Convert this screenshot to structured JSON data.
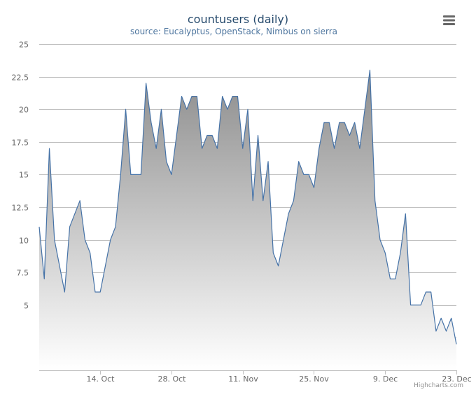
{
  "chart_data": {
    "type": "area",
    "title": "countusers (daily)",
    "subtitle": "source: Eucalyptus, OpenStack, Nimbus on sierra",
    "credits": "Highcharts.com",
    "xlabel": "",
    "ylabel": "",
    "x_start": "2012-10-02",
    "x_end": "2012-12-23",
    "ylim": [
      0,
      25
    ],
    "y_ticks": [
      0,
      2.5,
      5,
      7.5,
      10,
      12.5,
      15,
      17.5,
      20,
      22.5,
      25
    ],
    "y_tick_labels": [
      "",
      "",
      "5",
      "7.5",
      "10",
      "12.5",
      "15",
      "17.5",
      "20",
      "22.5",
      "25"
    ],
    "x_ticks": [
      "2012-10-14",
      "2012-10-28",
      "2012-11-11",
      "2012-11-25",
      "2012-12-09",
      "2012-12-23"
    ],
    "x_tick_labels": [
      "14. Oct",
      "28. Oct",
      "11. Nov",
      "25. Nov",
      "9. Dec",
      "23. Dec"
    ],
    "grid": true,
    "legend": "none",
    "colors": {
      "line": "#4572A7",
      "fill_top": "#8c8c8c",
      "fill_bottom": "#ffffff",
      "title": "#274b6d",
      "subtitle": "#4d759e",
      "axis_label": "#666666",
      "grid": "#c0c0c0"
    },
    "series": [
      {
        "x": [
          "2012-10-02",
          "2012-10-03",
          "2012-10-04",
          "2012-10-05",
          "2012-10-06",
          "2012-10-07",
          "2012-10-08",
          "2012-10-09",
          "2012-10-10",
          "2012-10-11",
          "2012-10-12",
          "2012-10-13",
          "2012-10-14",
          "2012-10-15",
          "2012-10-16",
          "2012-10-17",
          "2012-10-18",
          "2012-10-19",
          "2012-10-20",
          "2012-10-21",
          "2012-10-22",
          "2012-10-23",
          "2012-10-24",
          "2012-10-25",
          "2012-10-26",
          "2012-10-27",
          "2012-10-28",
          "2012-10-29",
          "2012-10-30",
          "2012-10-31",
          "2012-11-01",
          "2012-11-02",
          "2012-11-03",
          "2012-11-04",
          "2012-11-05",
          "2012-11-06",
          "2012-11-07",
          "2012-11-08",
          "2012-11-09",
          "2012-11-10",
          "2012-11-11",
          "2012-11-12",
          "2012-11-13",
          "2012-11-14",
          "2012-11-15",
          "2012-11-16",
          "2012-11-17",
          "2012-11-18",
          "2012-11-19",
          "2012-11-20",
          "2012-11-21",
          "2012-11-22",
          "2012-11-23",
          "2012-11-24",
          "2012-11-25",
          "2012-11-26",
          "2012-11-27",
          "2012-11-28",
          "2012-11-29",
          "2012-11-30",
          "2012-12-01",
          "2012-12-02",
          "2012-12-03",
          "2012-12-04",
          "2012-12-05",
          "2012-12-06",
          "2012-12-07",
          "2012-12-08",
          "2012-12-09",
          "2012-12-10",
          "2012-12-11",
          "2012-12-12",
          "2012-12-13",
          "2012-12-14",
          "2012-12-15",
          "2012-12-16",
          "2012-12-17",
          "2012-12-18",
          "2012-12-19",
          "2012-12-20",
          "2012-12-21",
          "2012-12-22",
          "2012-12-23"
        ],
        "values": [
          11,
          7,
          17,
          10,
          8,
          6,
          11,
          12,
          13,
          10,
          9,
          6,
          6,
          8,
          10,
          11,
          15,
          20,
          15,
          15,
          15,
          22,
          19,
          17,
          20,
          16,
          15,
          18,
          21,
          20,
          21,
          21,
          17,
          18,
          18,
          17,
          21,
          20,
          21,
          21,
          17,
          20,
          13,
          18,
          13,
          16,
          9,
          8,
          10,
          12,
          13,
          16,
          15,
          15,
          14,
          17,
          19,
          19,
          17,
          19,
          19,
          18,
          19,
          17,
          20,
          23,
          13,
          10,
          9,
          7,
          7,
          9,
          12,
          5,
          5,
          5,
          6,
          6,
          3,
          4,
          3,
          4,
          2
        ]
      }
    ]
  },
  "ui": {
    "menu_icon": "hamburger-menu-icon"
  }
}
